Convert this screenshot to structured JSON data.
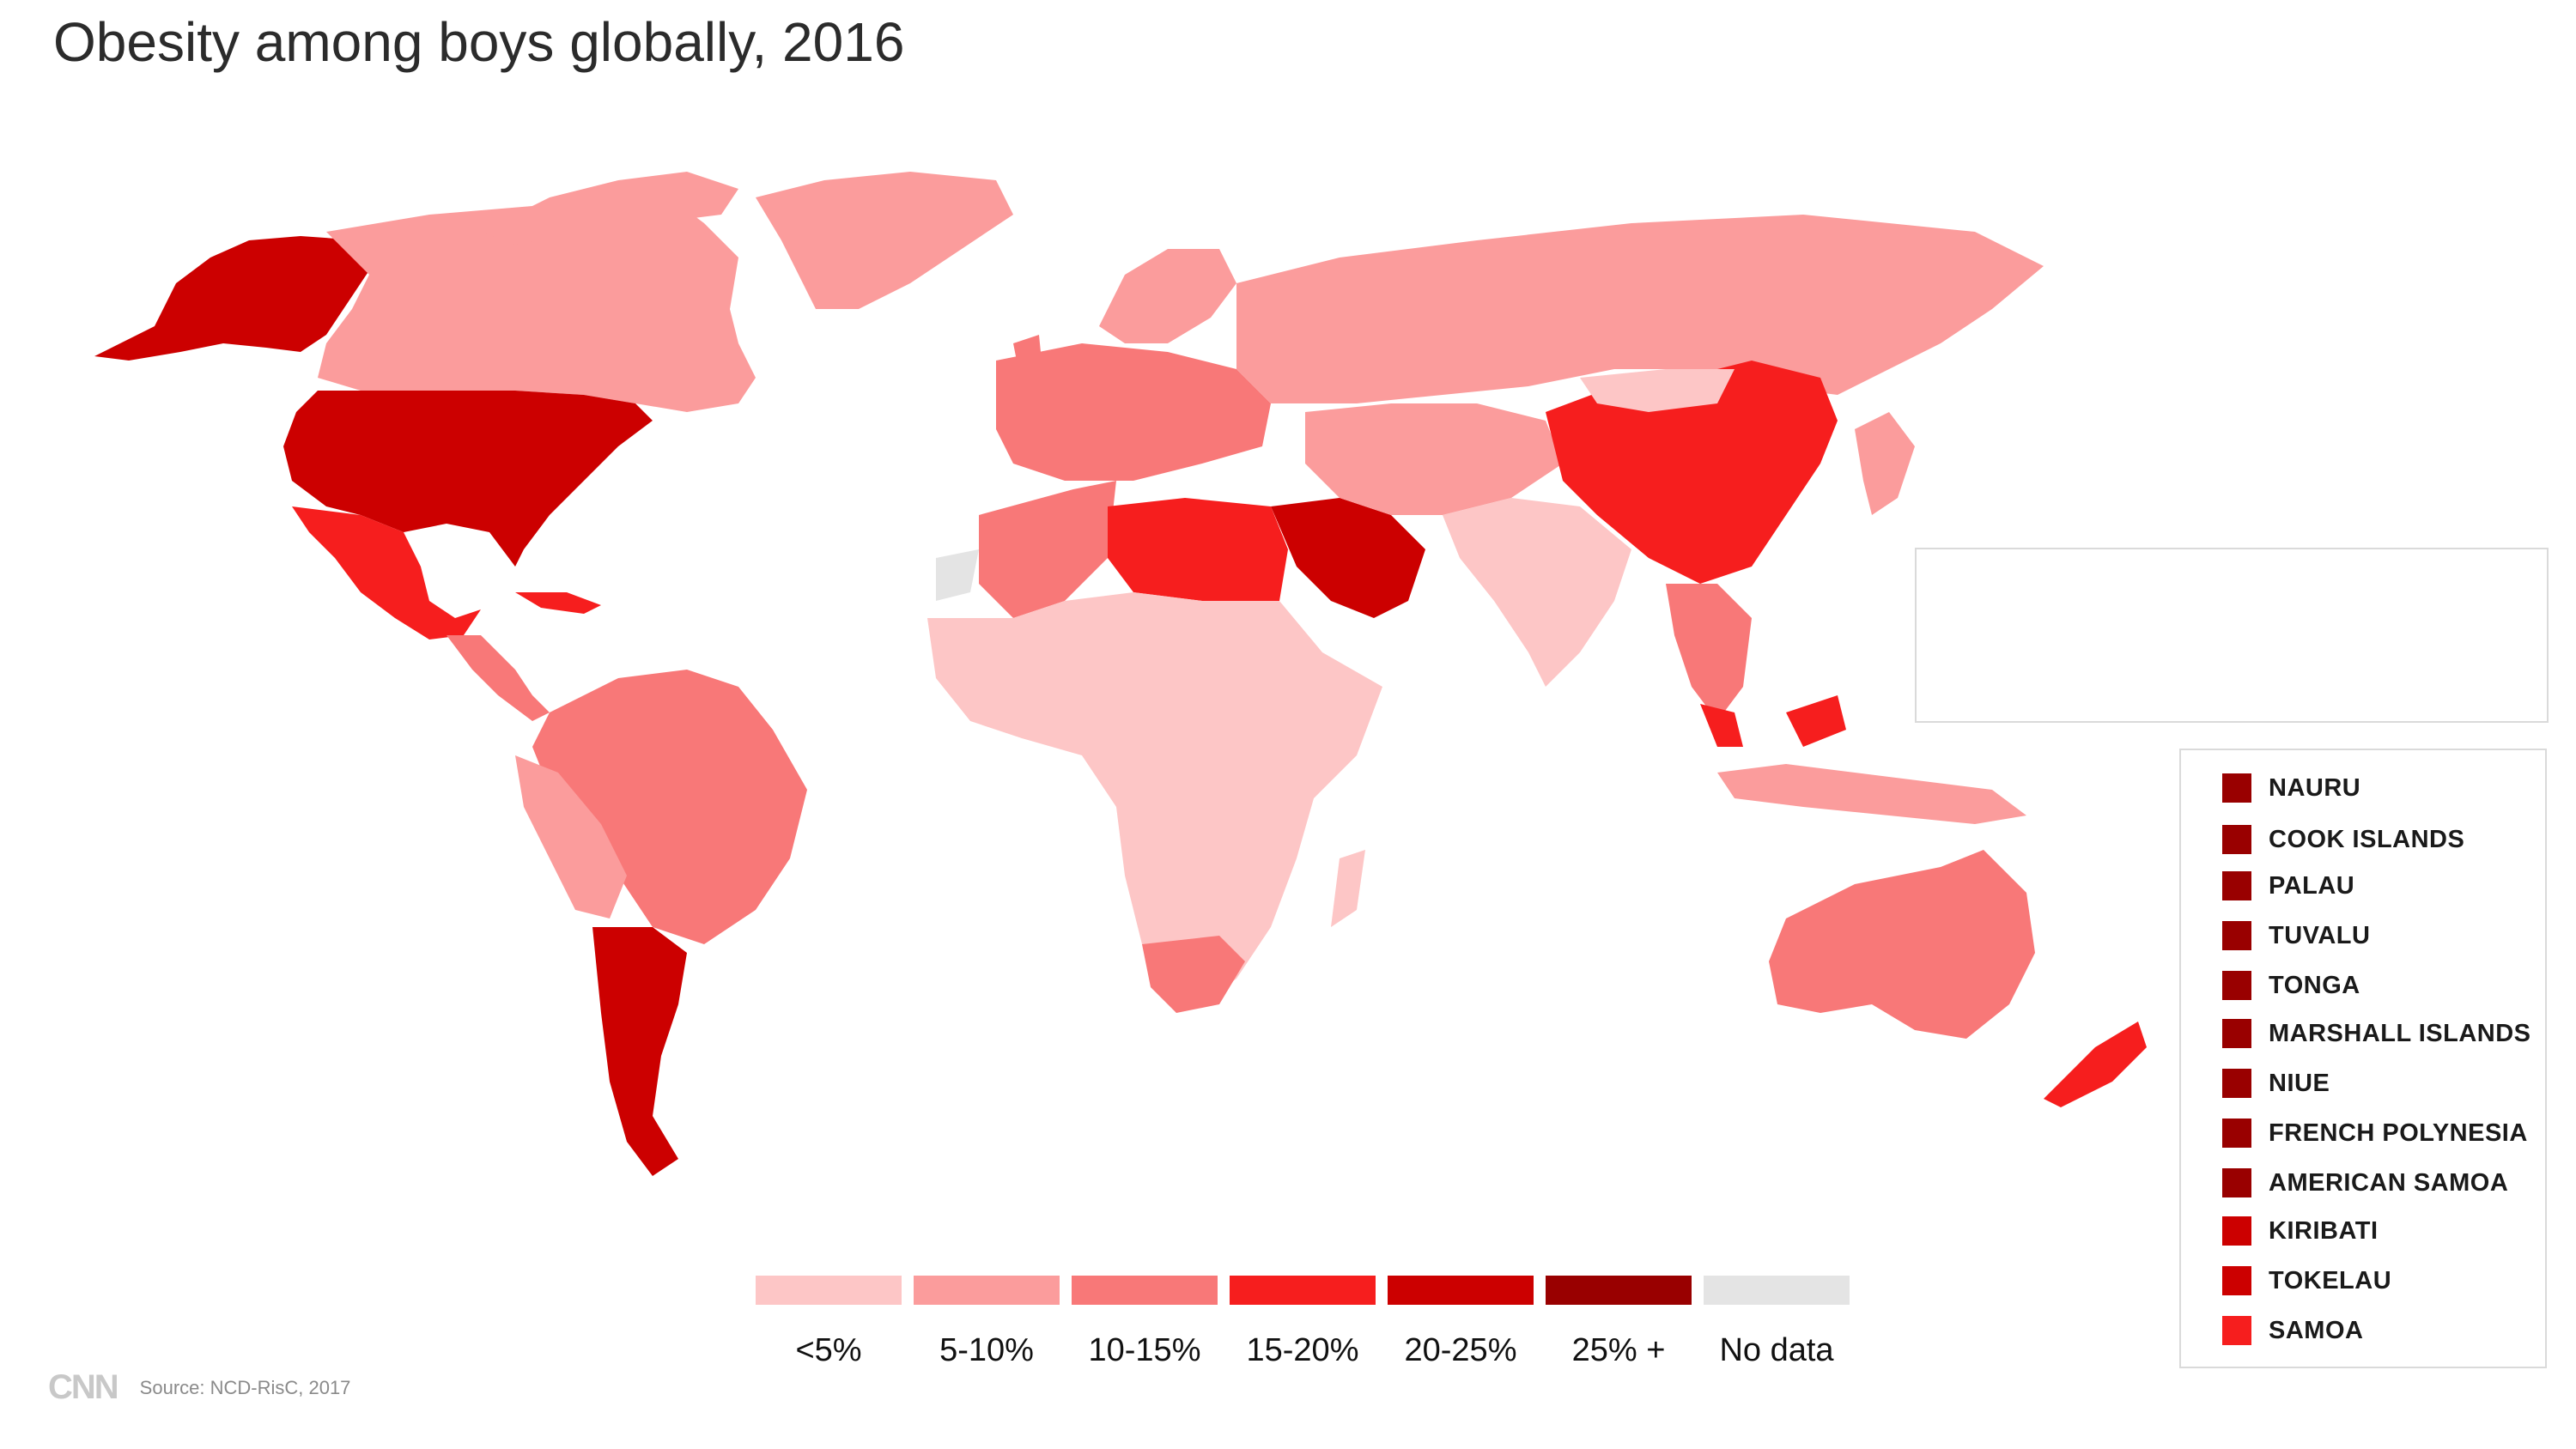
{
  "title": "Obesity among boys globally, 2016",
  "colors": {
    "lt5": "#fdc6c6",
    "5_10": "#fb9c9c",
    "10_15": "#f87878",
    "15_20": "#f61e1e",
    "20_25": "#cc0000",
    "25plus": "#990000",
    "nodata": "#e4e4e4"
  },
  "legend": [
    {
      "label": "<5%",
      "color": "#fdc6c6"
    },
    {
      "label": "5-10%",
      "color": "#fb9c9c"
    },
    {
      "label": "10-15%",
      "color": "#f87878"
    },
    {
      "label": "15-20%",
      "color": "#f61e1e"
    },
    {
      "label": "20-25%",
      "color": "#cc0000"
    },
    {
      "label": "25% +",
      "color": "#990000"
    },
    {
      "label": "No data",
      "color": "#e4e4e4"
    }
  ],
  "islands": [
    {
      "name": "NAURU",
      "color": "#990000"
    },
    {
      "name": "COOK ISLANDS",
      "color": "#990000"
    },
    {
      "name": "PALAU",
      "color": "#990000"
    },
    {
      "name": "TUVALU",
      "color": "#990000"
    },
    {
      "name": "TONGA",
      "color": "#990000"
    },
    {
      "name": "MARSHALL ISLANDS",
      "color": "#990000"
    },
    {
      "name": "NIUE",
      "color": "#990000"
    },
    {
      "name": "FRENCH POLYNESIA",
      "color": "#990000"
    },
    {
      "name": "AMERICAN SAMOA",
      "color": "#990000"
    },
    {
      "name": "KIRIBATI",
      "color": "#cc0000"
    },
    {
      "name": "TOKELAU",
      "color": "#cc0000"
    },
    {
      "name": "SAMOA",
      "color": "#f61e1e"
    }
  ],
  "footer": {
    "logo": "CNN",
    "source": "Source: NCD-RisC, 2017"
  }
}
